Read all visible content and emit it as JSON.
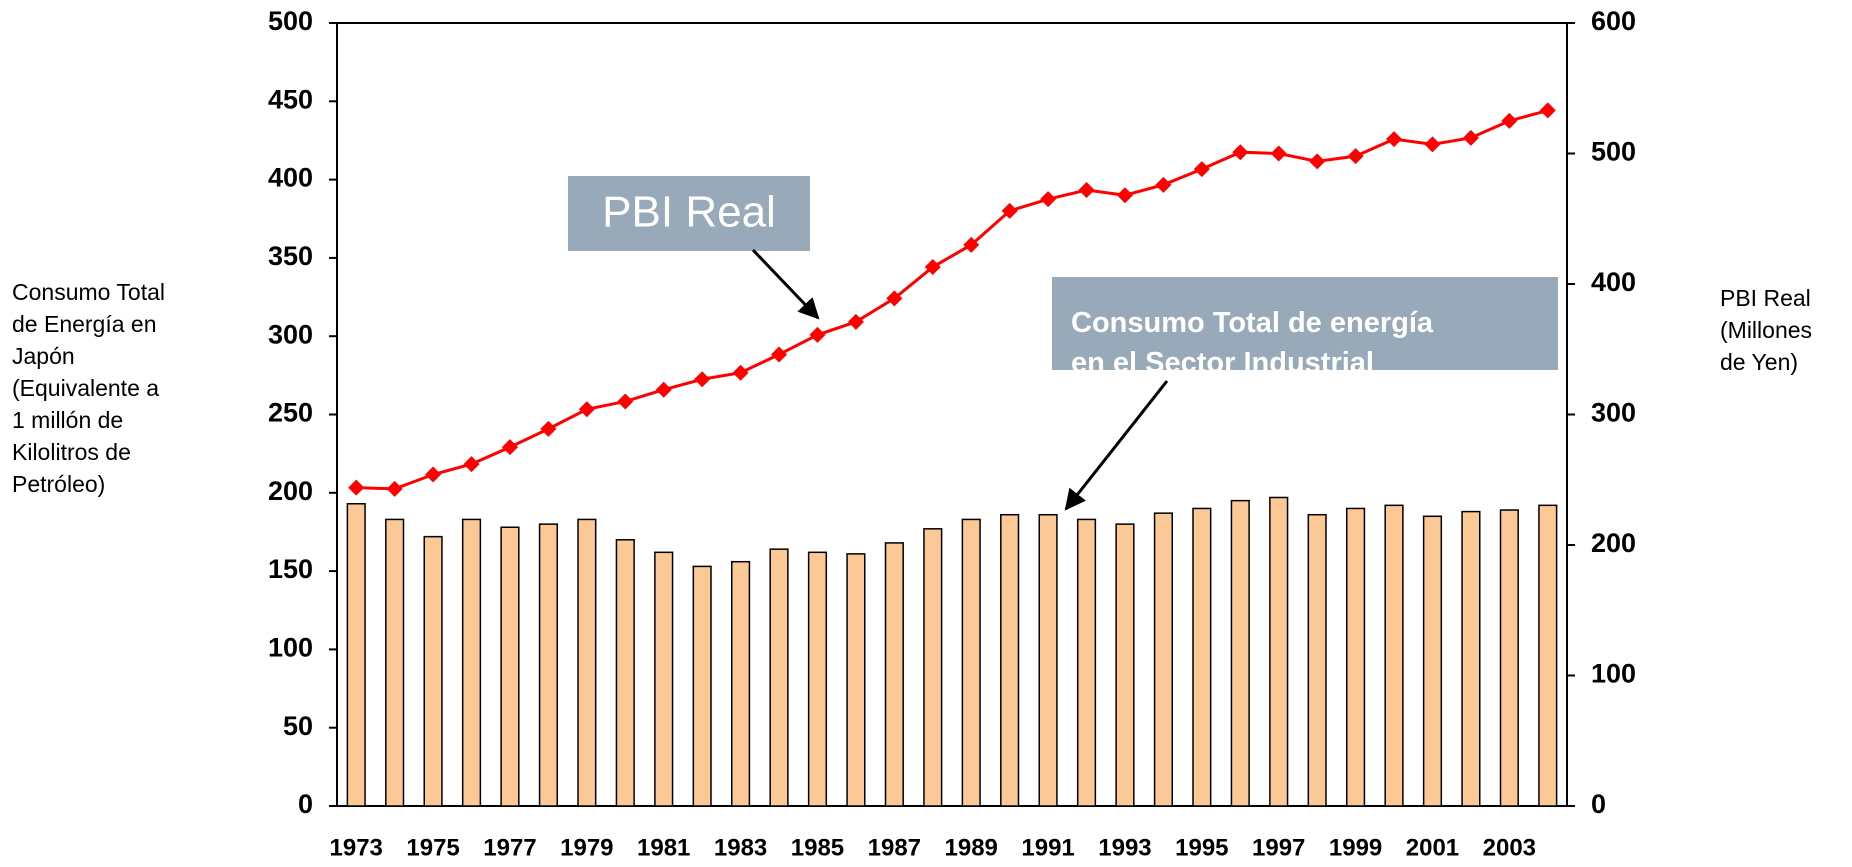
{
  "chart_data": {
    "type": "bar_line",
    "categories": [
      1973,
      null,
      1975,
      null,
      1977,
      null,
      1979,
      null,
      1981,
      null,
      1983,
      null,
      1985,
      null,
      1987,
      null,
      1989,
      null,
      1991,
      null,
      1993,
      null,
      1995,
      null,
      1997,
      null,
      1999,
      null,
      2001,
      null,
      2003,
      null
    ],
    "series": [
      {
        "name": "Consumo Total de energía en el Sector Industrial",
        "type": "bar",
        "color": "#fcc896",
        "axis": "y",
        "values": [
          193,
          183,
          172,
          183,
          178,
          180,
          183,
          170,
          162,
          153,
          156,
          164,
          162,
          161,
          168,
          177,
          183,
          186,
          186,
          183,
          180,
          187,
          190,
          195,
          197,
          186,
          190,
          192,
          185,
          188,
          189,
          192
        ]
      },
      {
        "name": "PBI Real",
        "type": "line",
        "color": "#ff0000",
        "axis": "y2",
        "values": [
          244,
          243,
          254,
          262,
          275,
          289,
          304,
          310,
          319,
          327,
          332,
          346,
          361,
          371,
          389,
          413,
          430,
          456,
          465,
          472,
          468,
          476,
          488,
          501,
          500,
          494,
          498,
          511,
          507,
          512,
          525,
          533
        ]
      }
    ],
    "y_label": [
      "Consumo Total",
      "de Energía en",
      "Japón",
      "(Equivalente a",
      "1 millón de",
      "Kilolitros de",
      "Petróleo)"
    ],
    "y2_label": [
      "PBI Real",
      "(Millones",
      "de Yen)"
    ],
    "ylim": [
      0,
      500
    ],
    "yticks": [
      0,
      50,
      100,
      150,
      200,
      250,
      300,
      350,
      400,
      450,
      500
    ],
    "y2lim": [
      0,
      600
    ],
    "y2ticks": [
      0,
      100,
      200,
      300,
      400,
      500,
      600
    ]
  }
}
